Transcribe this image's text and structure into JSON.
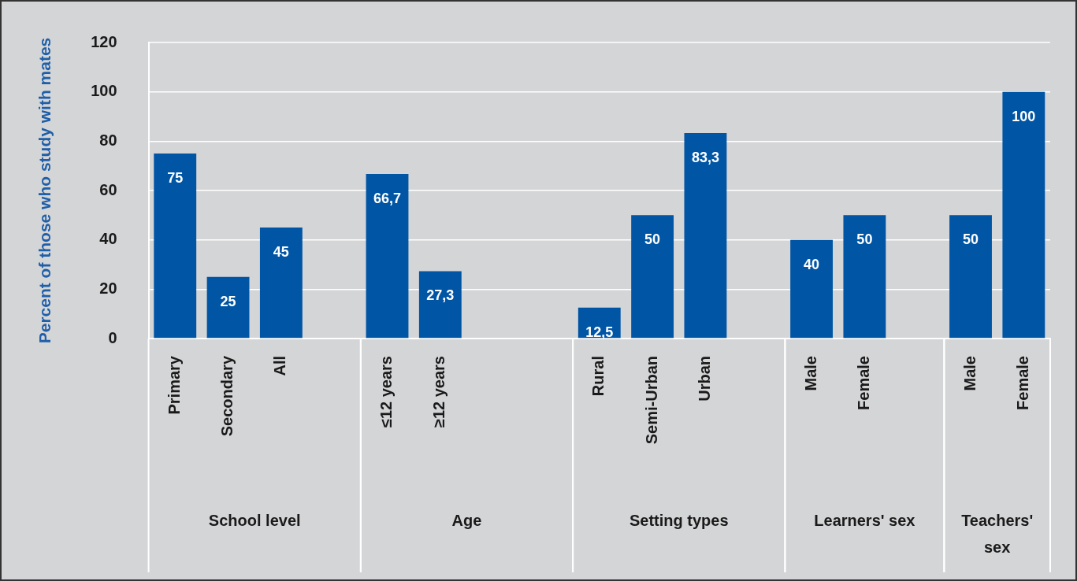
{
  "chart_data": {
    "type": "bar",
    "ylabel": "Percent of those who study with mates",
    "categories": [
      "Primary",
      "Secondary",
      "All",
      null,
      "≤12 years",
      "≥12 years",
      null,
      null,
      "Rural",
      "Semi-Urban",
      "Urban",
      null,
      "Male",
      "Female",
      null,
      "Male",
      "Female"
    ],
    "values": [
      75,
      25,
      45,
      null,
      66.7,
      27.3,
      null,
      null,
      12.5,
      50,
      83.3,
      null,
      40,
      50,
      null,
      50,
      100
    ],
    "value_labels": [
      "75",
      "25",
      "45",
      null,
      "66,7",
      "27,3",
      null,
      null,
      "12,5",
      "50",
      "83,3",
      null,
      "40",
      "50",
      null,
      "50",
      "100"
    ],
    "color": "#0055a5",
    "ylim": [
      0,
      120
    ],
    "yticks": [
      0,
      20,
      40,
      60,
      80,
      100,
      120
    ],
    "grid": "y",
    "annotations": [
      "School level",
      "Age",
      "Setting types",
      "Learners' sex",
      "Teachers'\nsex"
    ]
  }
}
